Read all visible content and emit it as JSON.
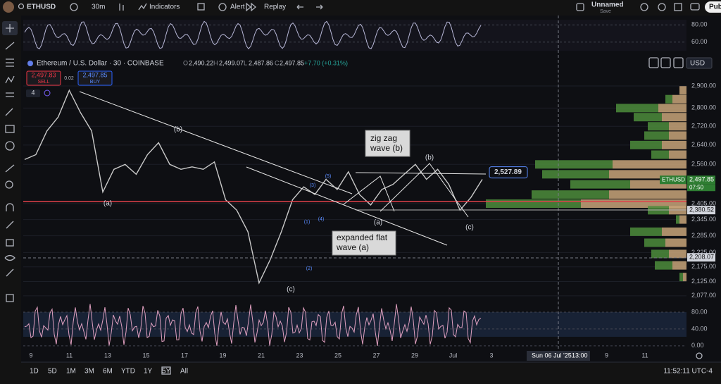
{
  "toolbar": {
    "symbol": "ETHUSD",
    "interval": "30m",
    "indicators": "Indicators",
    "alert": "Alert",
    "replay": "Replay",
    "layout_name": "Unnamed",
    "save": "Save",
    "publish": "Pub"
  },
  "legend": {
    "title": "Ethereum / U.S. Dollar · 30 · COINBASE",
    "open_key": "O",
    "open": "2,490.22",
    "high_key": "H",
    "high": "2,499.07",
    "low_key": "L",
    "low": "2,487.86",
    "close_key": "C",
    "close": "2,497.85",
    "change": "+7.70 (+0.31%)",
    "indicator_count": "4"
  },
  "trade": {
    "sell_price": "2,497.83",
    "sell": "SELL",
    "spread": "0.02",
    "buy_price": "2,497.85",
    "buy": "BUY"
  },
  "currency": "USD",
  "price_axis": {
    "log": true,
    "ylim": [
      2065,
      3040
    ],
    "yticks": [
      {
        "value": 2900,
        "label": "2,900.00"
      },
      {
        "value": 2800,
        "label": "2,800.00"
      },
      {
        "value": 2720,
        "label": "2,720.00"
      },
      {
        "value": 2640,
        "label": "2,640.00"
      },
      {
        "value": 2560,
        "label": "2,560.00"
      },
      {
        "value": 2405,
        "label": "2,405.00"
      },
      {
        "value": 2345,
        "label": "2,345.00"
      },
      {
        "value": 2285,
        "label": "2,285.00"
      },
      {
        "value": 2225,
        "label": "2,225.00"
      },
      {
        "value": 2175,
        "label": "2,175.00"
      },
      {
        "value": 2125,
        "label": "2,125.00"
      },
      {
        "value": 2077,
        "label": "2,077.00"
      }
    ],
    "current": {
      "symbol": "ETHUSD",
      "price": {
        "value": 2497.85,
        "label": "2,497.85"
      },
      "countdown": "07:50"
    },
    "levels": [
      {
        "value": 2380.52,
        "label": "2,380.52"
      },
      {
        "value": 2208.07,
        "label": "2,208.07"
      }
    ],
    "chart_tag": {
      "value": 2527.89,
      "label": "2,527.89"
    }
  },
  "price": {
    "color": "#c9c9c9",
    "closes": [
      2580,
      2600,
      2700,
      2760,
      2880,
      2780,
      2700,
      2450,
      2540,
      2560,
      2520,
      2600,
      2650,
      2560,
      2540,
      2550,
      2540,
      2570,
      2420,
      2380,
      2300,
      2120,
      2200,
      2300,
      2420,
      2470,
      2440,
      2500,
      2460,
      2530,
      2440,
      2400,
      2460,
      2480,
      2520,
      2560,
      2500,
      2540,
      2480,
      2380,
      2430,
      2500
    ]
  },
  "volume_profile": {
    "up_color": "#4c8c3c",
    "down_color": "#c8a47a",
    "prices": [
      2880,
      2840,
      2800,
      2760,
      2720,
      2680,
      2640,
      2600,
      2560,
      2520,
      2480,
      2440,
      2405,
      2380,
      2345,
      2300,
      2260,
      2220,
      2180,
      2140
    ],
    "up": [
      0,
      10,
      60,
      40,
      30,
      35,
      45,
      25,
      110,
      95,
      85,
      110,
      135,
      30,
      5,
      45,
      30,
      25,
      25,
      5
    ],
    "down": [
      10,
      20,
      40,
      35,
      25,
      25,
      35,
      25,
      105,
      110,
      80,
      110,
      150,
      25,
      10,
      35,
      30,
      25,
      20,
      5
    ]
  },
  "rsi": {
    "ylim": [
      50,
      86
    ],
    "yticks": [
      {
        "value": 80,
        "label": "80.00"
      },
      {
        "value": 60,
        "label": "60.00"
      }
    ]
  },
  "stoch": {
    "ylim": [
      -7,
      105
    ],
    "yticks": [
      {
        "value": 80,
        "label": "80.00"
      },
      {
        "value": 40,
        "label": "40.00"
      },
      {
        "value": 0,
        "label": "0.00"
      }
    ]
  },
  "time_axis": {
    "labels": [
      "9",
      "11",
      "13",
      "15",
      "17",
      "19",
      "21",
      "23",
      "25",
      "27",
      "29",
      "Jul",
      "3",
      "9",
      "11"
    ],
    "crosshair": "Sun 06 Jul '25",
    "crosshair_time": "13:00"
  },
  "annotations": {
    "b_major": "(b)",
    "a_major": "(a)",
    "c_major": "(c)",
    "zigzag": [
      "zig zag",
      "wave (b)"
    ],
    "flat": [
      "expanded flat",
      "wave (a)"
    ],
    "b_minor": "(b)",
    "c_minor": "(c)",
    "a_minor": "(a)",
    "sub_waves": [
      "(1)",
      "(2)",
      "(3)",
      "(4)",
      "(5)"
    ]
  },
  "ranges": [
    "1D",
    "5D",
    "1M",
    "3M",
    "6M",
    "YTD",
    "1Y",
    "5Y",
    "All"
  ],
  "clock": "11:52:11 UTC-4"
}
